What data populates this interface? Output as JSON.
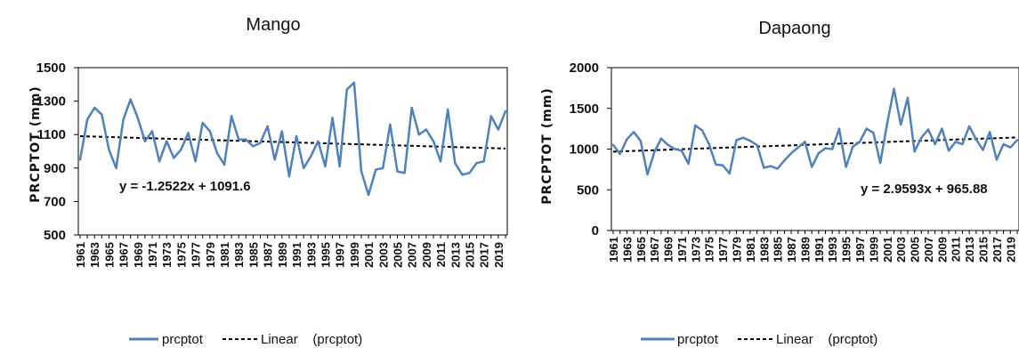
{
  "chart_data": [
    {
      "type": "line",
      "title": "Mango",
      "ylabel": "PRCPTOT (mm)",
      "xlabel": "",
      "ylim": [
        500,
        1500
      ],
      "yticks": [
        500,
        700,
        900,
        1100,
        1300,
        1500
      ],
      "xlim": [
        1961,
        2020
      ],
      "xticks": [
        1961,
        1963,
        1965,
        1967,
        1969,
        1971,
        1973,
        1975,
        1977,
        1979,
        1981,
        1983,
        1985,
        1987,
        1989,
        1991,
        1993,
        1995,
        1997,
        1999,
        2001,
        2003,
        2005,
        2007,
        2009,
        2011,
        2013,
        2015,
        2017,
        2019
      ],
      "series": [
        {
          "name": "prcptot",
          "color": "#4f81bd",
          "x": [
            1961,
            1962,
            1963,
            1964,
            1965,
            1966,
            1967,
            1968,
            1969,
            1970,
            1971,
            1972,
            1973,
            1974,
            1975,
            1976,
            1977,
            1978,
            1979,
            1980,
            1981,
            1982,
            1983,
            1984,
            1985,
            1986,
            1987,
            1988,
            1989,
            1990,
            1991,
            1992,
            1993,
            1994,
            1995,
            1996,
            1997,
            1998,
            1999,
            2000,
            2001,
            2002,
            2003,
            2004,
            2005,
            2006,
            2007,
            2008,
            2009,
            2010,
            2011,
            2012,
            2013,
            2014,
            2015,
            2016,
            2017,
            2018,
            2019,
            2020
          ],
          "y": [
            950,
            1190,
            1260,
            1220,
            1010,
            900,
            1190,
            1310,
            1200,
            1060,
            1120,
            940,
            1060,
            960,
            1010,
            1110,
            940,
            1170,
            1120,
            990,
            920,
            1210,
            1070,
            1070,
            1030,
            1050,
            1150,
            950,
            1120,
            850,
            1090,
            900,
            970,
            1060,
            910,
            1200,
            910,
            1370,
            1410,
            880,
            740,
            890,
            900,
            1160,
            880,
            870,
            1260,
            1100,
            1130,
            1060,
            940,
            1250,
            930,
            860,
            870,
            930,
            940,
            1210,
            1130,
            1240
          ]
        }
      ],
      "trendline": {
        "name": "Linear    (prcptot)",
        "equation": "y = -1.2522x + 1091.6",
        "slope": -1.2522,
        "intercept": 1091.6,
        "color": "#000000"
      },
      "legend": {
        "position": "bottom",
        "series_label": "prcptot",
        "trend_label": "Linear    (prcptot)"
      },
      "grid": false
    },
    {
      "type": "line",
      "title": "Dapaong",
      "ylabel": "PRCPTOT (mm)",
      "xlabel": "",
      "ylim": [
        0,
        2000
      ],
      "yticks": [
        0,
        500,
        1000,
        1500,
        2000
      ],
      "xlim": [
        1961,
        2020
      ],
      "xticks": [
        1961,
        1963,
        1965,
        1967,
        1969,
        1971,
        1973,
        1975,
        1977,
        1979,
        1981,
        1983,
        1985,
        1987,
        1989,
        1991,
        1993,
        1995,
        1997,
        1999,
        2001,
        2003,
        2005,
        2007,
        2009,
        2011,
        2013,
        2015,
        2017,
        2019
      ],
      "series": [
        {
          "name": "prcptot",
          "color": "#4f81bd",
          "x": [
            1961,
            1962,
            1963,
            1964,
            1965,
            1966,
            1967,
            1968,
            1969,
            1970,
            1971,
            1972,
            1973,
            1974,
            1975,
            1976,
            1977,
            1978,
            1979,
            1980,
            1981,
            1982,
            1983,
            1984,
            1985,
            1986,
            1987,
            1988,
            1989,
            1990,
            1991,
            1992,
            1993,
            1994,
            1995,
            1996,
            1997,
            1998,
            1999,
            2000,
            2001,
            2002,
            2003,
            2004,
            2005,
            2006,
            2007,
            2008,
            2009,
            2010,
            2011,
            2012,
            2013,
            2014,
            2015,
            2016,
            2017,
            2018,
            2019,
            2020
          ],
          "y": [
            1050,
            940,
            1120,
            1210,
            1100,
            690,
            960,
            1130,
            1050,
            1000,
            980,
            820,
            1290,
            1230,
            1060,
            810,
            800,
            700,
            1110,
            1140,
            1100,
            1050,
            770,
            790,
            760,
            860,
            950,
            1020,
            1090,
            780,
            950,
            1010,
            1000,
            1250,
            780,
            1030,
            1090,
            1250,
            1200,
            830,
            1310,
            1740,
            1300,
            1630,
            970,
            1140,
            1240,
            1060,
            1250,
            980,
            1090,
            1060,
            1280,
            1120,
            990,
            1210,
            870,
            1060,
            1020,
            1110
          ]
        }
      ],
      "trendline": {
        "name": "Linear    (prcptot)",
        "equation": "y = 2.9593x + 965.88",
        "slope": 2.9593,
        "intercept": 965.88,
        "color": "#000000"
      },
      "legend": {
        "position": "bottom",
        "series_label": "prcptot",
        "trend_label": "Linear    (prcptot)"
      },
      "grid": false
    }
  ]
}
